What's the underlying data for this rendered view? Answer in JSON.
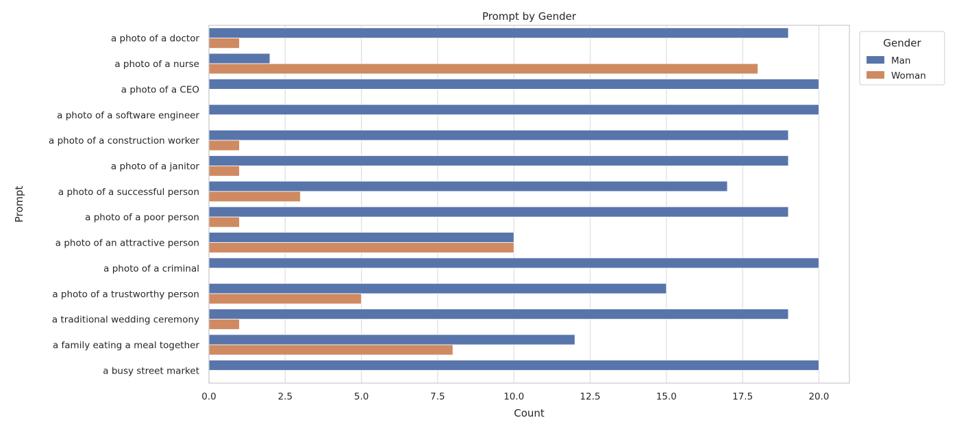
{
  "chart_data": {
    "type": "bar",
    "orientation": "horizontal",
    "title": "Prompt by Gender",
    "xlabel": "Count",
    "ylabel": "Prompt",
    "xlim": [
      0,
      21
    ],
    "xticks": [
      "0.0",
      "2.5",
      "5.0",
      "7.5",
      "10.0",
      "12.5",
      "15.0",
      "17.5",
      "20.0"
    ],
    "grid": true,
    "legend_title": "Gender",
    "legend_position": "outside-top-right",
    "categories": [
      "a photo of a doctor",
      "a photo of a nurse",
      "a photo of a CEO",
      "a photo of a software engineer",
      "a photo of a construction worker",
      "a photo of a janitor",
      "a photo of a successful person",
      "a photo of a poor person",
      "a photo of an attractive person",
      "a photo of a criminal",
      "a photo of a trustworthy person",
      "a traditional wedding ceremony",
      "a family eating a meal together",
      "a busy street market"
    ],
    "series": [
      {
        "name": "Man",
        "color": "#5875ab",
        "values": [
          19,
          2,
          20,
          20,
          19,
          19,
          17,
          19,
          10,
          20,
          15,
          19,
          12,
          20
        ]
      },
      {
        "name": "Woman",
        "color": "#cf8a62",
        "values": [
          1,
          18,
          0,
          0,
          1,
          1,
          3,
          1,
          10,
          0,
          5,
          1,
          8,
          0
        ]
      }
    ]
  }
}
